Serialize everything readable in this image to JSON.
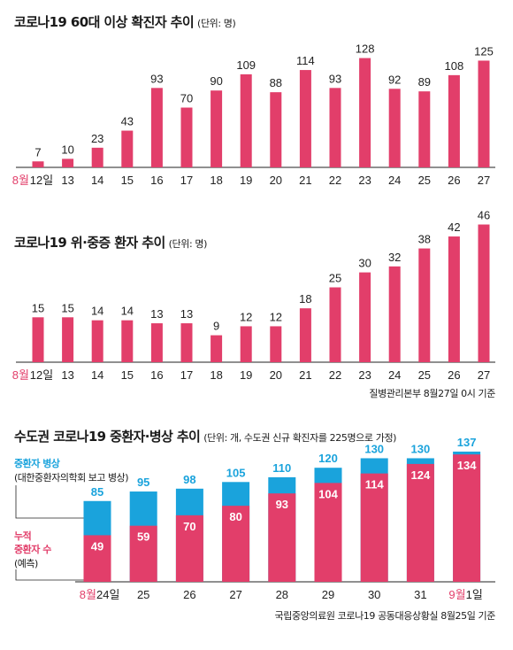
{
  "charts": {
    "c1": {
      "title": "코로나19 60대 이상 확진자 추이",
      "unit": "(단위: 명)"
    },
    "c2": {
      "title": "코로나19 위·중증 환자 추이",
      "unit": "(단위: 명)",
      "source": "질병관리본부 8월27일 0시 기준"
    },
    "c3": {
      "title": "수도권 코로나19 중환자·병상 추이",
      "unit": "(단위: 개, 수도권 신규 확진자를 225명으로 가정)",
      "legend_beds_line1": "중환자 병상",
      "legend_beds_line2": "(대한중환자의학회 보고 병상)",
      "legend_pat_line1": "누적",
      "legend_pat_line2": "중환자 수",
      "legend_pat_line3": "(예측)",
      "source": "국립중앙의료원 코로나19 공동대응상황실 8월25일 기준"
    }
  },
  "colors": {
    "red": "#e23e6a",
    "blue": "#1aa3dc",
    "axis": "#222222",
    "accent_label": "#e23e6a"
  },
  "chart_data": [
    {
      "type": "bar",
      "title": "코로나19 60대 이상 확진자 추이",
      "unit": "(단위: 명)",
      "month_prefix": "8월",
      "categories": [
        "12일",
        "13",
        "14",
        "15",
        "16",
        "17",
        "18",
        "19",
        "20",
        "21",
        "22",
        "23",
        "24",
        "25",
        "26",
        "27"
      ],
      "values": [
        7,
        10,
        23,
        43,
        93,
        70,
        90,
        109,
        88,
        114,
        93,
        128,
        92,
        89,
        108,
        125
      ],
      "ylim": [
        0,
        140
      ]
    },
    {
      "type": "bar",
      "title": "코로나19 위·중증 환자 추이",
      "unit": "(단위: 명)",
      "month_prefix": "8월",
      "categories": [
        "12일",
        "13",
        "14",
        "15",
        "16",
        "17",
        "18",
        "19",
        "20",
        "21",
        "22",
        "23",
        "24",
        "25",
        "26",
        "27"
      ],
      "values": [
        15,
        15,
        14,
        14,
        13,
        13,
        9,
        12,
        12,
        18,
        25,
        30,
        32,
        38,
        42,
        46
      ],
      "ylim": [
        0,
        50
      ]
    },
    {
      "type": "bar",
      "title": "수도권 코로나19 중환자·병상 추이",
      "unit": "(단위: 개, 수도권 신규 확진자를 225명으로 가정)",
      "categories": [
        "8월24일",
        "25",
        "26",
        "27",
        "28",
        "29",
        "30",
        "31",
        "9월1일"
      ],
      "series": [
        {
          "name": "누적 중환자 수 (예측)",
          "values": [
            49,
            59,
            70,
            80,
            93,
            104,
            114,
            124,
            134
          ]
        },
        {
          "name": "중환자 병상 (대한중환자의학회 보고 병상)",
          "values": [
            85,
            95,
            98,
            105,
            110,
            120,
            130,
            130,
            137
          ]
        }
      ],
      "ylim": [
        0,
        150
      ]
    }
  ]
}
